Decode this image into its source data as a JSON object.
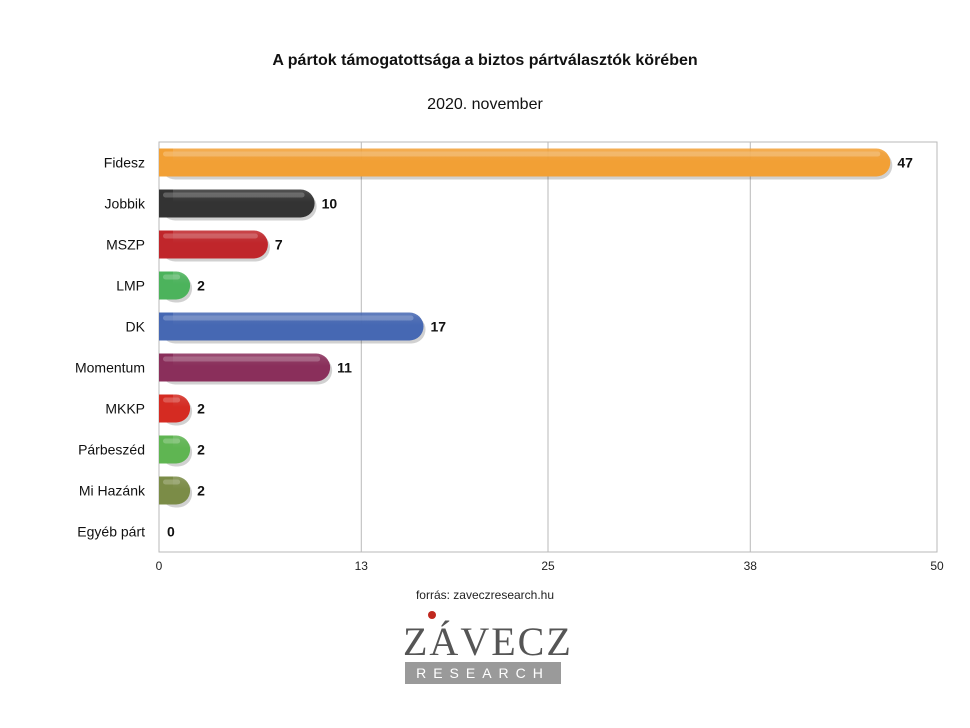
{
  "chart_data": {
    "type": "bar",
    "orientation": "horizontal",
    "title": "A pártok támogatottsága a biztos pártválasztók körében",
    "subtitle": "2020. november",
    "categories": [
      "Fidesz",
      "Jobbik",
      "MSZP",
      "LMP",
      "DK",
      "Momentum",
      "MKKP",
      "Párbeszéd",
      "Mi Hazánk",
      "Egyéb párt"
    ],
    "values": [
      47,
      10,
      7,
      2,
      17,
      11,
      2,
      2,
      2,
      0
    ],
    "colors": [
      "#f2a035",
      "#333333",
      "#c0262b",
      "#4cb35c",
      "#4668b3",
      "#8a2f5b",
      "#d52b22",
      "#5fb552",
      "#7b8c47",
      "#999999"
    ],
    "xlim": [
      0,
      50
    ],
    "xticks": [
      0,
      13,
      25,
      38,
      50
    ],
    "grid": true,
    "legend": "none"
  },
  "source": "forrás: zaveczresearch.hu",
  "logo": {
    "word": "ZÁVECZ",
    "band": "RESEARCH"
  }
}
